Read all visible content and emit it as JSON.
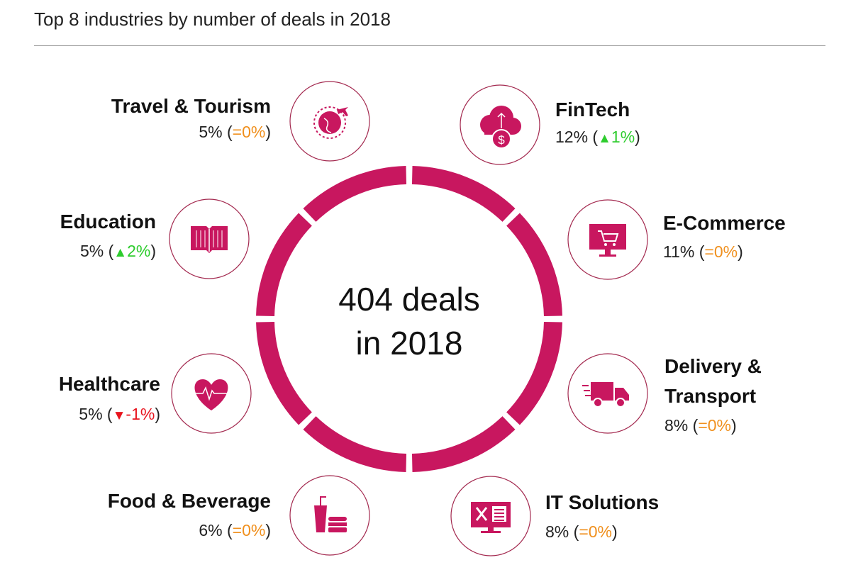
{
  "title": "Top 8 industries by number of deals in 2018",
  "colors": {
    "accent": "#c8175f",
    "up": "#2ecc2e",
    "down": "#e8141e",
    "flat": "#f0901e",
    "ring": "#c8175f"
  },
  "center": {
    "line1": "404 deals",
    "line2": "in 2018"
  },
  "chart_data": {
    "type": "pie",
    "title": "Top 8 industries by number of deals in 2018",
    "total_deals": 404,
    "year": 2018,
    "items": [
      {
        "name": "FinTech",
        "lines": [
          "FinTech"
        ],
        "share": "12%",
        "change": "1%",
        "trend": "up",
        "icon": "cloud-dollar-icon"
      },
      {
        "name": "E-Commerce",
        "lines": [
          "E-Commerce"
        ],
        "share": "11%",
        "change": "0%",
        "trend": "flat",
        "icon": "shopping-cart-monitor-icon"
      },
      {
        "name": "Delivery & Transport",
        "lines": [
          "Delivery &",
          "Transport"
        ],
        "share": "8%",
        "change": "0%",
        "trend": "flat",
        "icon": "delivery-truck-icon"
      },
      {
        "name": "IT Solutions",
        "lines": [
          "IT Solutions"
        ],
        "share": "8%",
        "change": "0%",
        "trend": "flat",
        "icon": "monitor-tools-icon"
      },
      {
        "name": "Food & Beverage",
        "lines": [
          "Food & Beverage"
        ],
        "share": "6%",
        "change": "0%",
        "trend": "flat",
        "icon": "drink-burger-icon"
      },
      {
        "name": "Healthcare",
        "lines": [
          "Healthcare"
        ],
        "share": "5%",
        "change": "-1%",
        "trend": "down",
        "icon": "heart-pulse-icon"
      },
      {
        "name": "Education",
        "lines": [
          "Education"
        ],
        "share": "5%",
        "change": "2%",
        "trend": "up",
        "icon": "open-book-icon"
      },
      {
        "name": "Travel & Tourism",
        "lines": [
          "Travel & Tourism"
        ],
        "share": "5%",
        "change": "0%",
        "trend": "flat",
        "icon": "globe-plane-icon"
      }
    ]
  }
}
